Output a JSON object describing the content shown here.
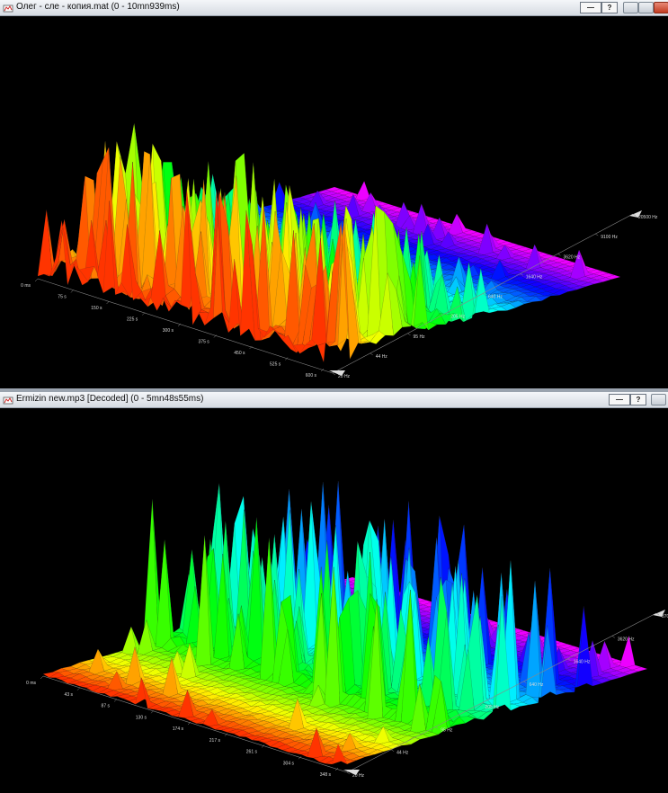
{
  "windows": [
    {
      "title": "Олег - сле - копия.mat (0 - 10mn939ms)",
      "time_labels": [
        "0 ms",
        "75 s",
        "150 s",
        "225 s",
        "300 s",
        "375 s",
        "450 s",
        "525 s",
        "600 s"
      ],
      "freq_labels": [
        "20 Hz",
        "44 Hz",
        "95 Hz",
        "205 Hz",
        "640 Hz",
        "1640 Hz",
        "3620 Hz",
        "9100 Hz",
        "20500 Hz"
      ]
    },
    {
      "title": "Ermizin new.mp3 [Decoded] (0 - 5mn48s55ms)",
      "time_labels": [
        "0 ms",
        "43 s",
        "87 s",
        "130 s",
        "174 s",
        "217 s",
        "261 s",
        "304 s",
        "348 s"
      ],
      "freq_labels": [
        "20 Hz",
        "44 Hz",
        "95 Hz",
        "205 Hz",
        "640 Hz",
        "1640 Hz",
        "3620 Hz",
        "8700 Hz"
      ]
    }
  ],
  "buttons": {
    "minimize_label": "—",
    "help_label": "?"
  },
  "colors": {
    "background": "#000000",
    "low_freq": "#ff2a00",
    "mid_freq": "#ffff00",
    "high_freq": "#00ffff",
    "top_freq": "#ff00ff"
  }
}
